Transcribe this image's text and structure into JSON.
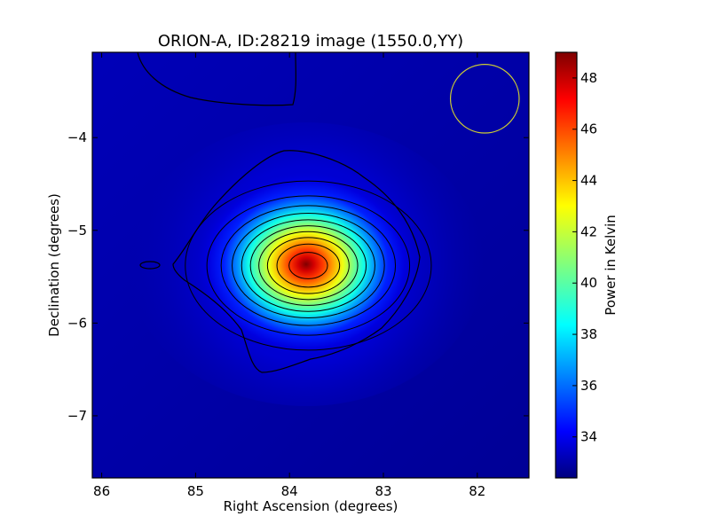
{
  "chart_data": {
    "type": "heatmap",
    "title": "ORION-A, ID:28219 image (1550.0,YY)",
    "xlabel": "Right Ascension (degrees)",
    "ylabel": "Declination (degrees)",
    "xlim": [
      86.1,
      81.45
    ],
    "ylim": [
      -7.67,
      -3.08
    ],
    "x_ticks": [
      86,
      85,
      84,
      83,
      82
    ],
    "x_tick_labels": [
      "86",
      "85",
      "84",
      "83",
      "82"
    ],
    "y_ticks": [
      -4,
      -5,
      -6,
      -7
    ],
    "y_tick_labels": [
      "−4",
      "−5",
      "−6",
      "−7"
    ],
    "grid": false,
    "colormap": "jet",
    "colorbar": {
      "label": "Power in Kelvin",
      "range": [
        32.4,
        49.0
      ],
      "ticks": [
        34,
        36,
        38,
        40,
        42,
        44,
        46,
        48
      ],
      "tick_labels": [
        "34",
        "36",
        "38",
        "40",
        "42",
        "44",
        "46",
        "48"
      ]
    },
    "source": {
      "ra": 83.8,
      "dec": -5.38,
      "peak_kelvin": 49.0,
      "background_kelvin": 33.6,
      "sigma_ra_deg": 0.56,
      "sigma_dec_deg": 0.39
    },
    "contour_levels": [
      34.6,
      36.0,
      37.5,
      39.0,
      40.5,
      42.0,
      43.5,
      45.0,
      46.5,
      48.0
    ],
    "beam": {
      "ra": 81.92,
      "dec": -3.58,
      "radius_deg": 0.37,
      "color": "#cccc33"
    }
  }
}
